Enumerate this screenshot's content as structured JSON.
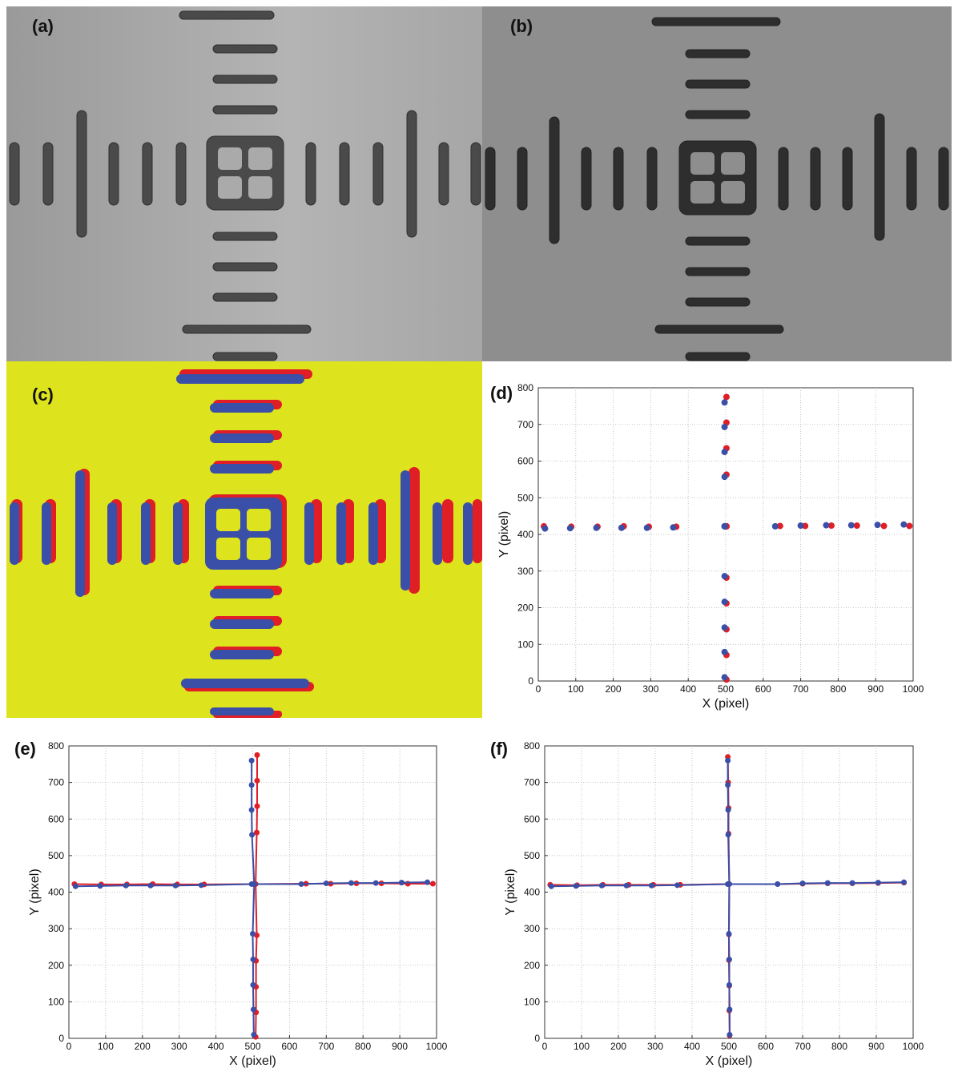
{
  "panels": {
    "a": {
      "label": "(a)"
    },
    "b": {
      "label": "(b)"
    },
    "c": {
      "label": "(c)"
    },
    "d": {
      "label": "(d)"
    },
    "e": {
      "label": "(e)"
    },
    "f": {
      "label": "(f)"
    }
  },
  "colors": {
    "red": "#e01e26",
    "blue": "#3a4fa8",
    "yellow": "#dde31c",
    "grid": "#b5b5b5"
  },
  "chart_data": [
    {
      "panel": "d",
      "type": "scatter",
      "title": "",
      "xlabel": "X (pixel)",
      "ylabel": "Y (pixel)",
      "xlim": [
        0,
        1000
      ],
      "ylim": [
        0,
        800
      ],
      "xticks": [
        "0",
        "100",
        "200",
        "300",
        "400",
        "500",
        "600",
        "700",
        "800",
        "900",
        "1000"
      ],
      "yticks": [
        "0",
        "100",
        "200",
        "300",
        "400",
        "500",
        "600",
        "700",
        "800"
      ],
      "grid": true,
      "lines": false,
      "series": [
        {
          "color": "red",
          "x": [
            15,
            88,
            158,
            228,
            295,
            368,
            502,
            645,
            712,
            782,
            850,
            922,
            990,
            502,
            502,
            502,
            502,
            502,
            502,
            502,
            502,
            502,
            502,
            502
          ],
          "y": [
            422,
            421,
            421,
            422,
            421,
            421,
            422,
            423,
            423,
            424,
            424,
            423,
            423,
            775,
            705,
            635,
            563,
            282,
            212,
            141,
            71,
            4,
            422,
            422
          ]
        },
        {
          "color": "blue",
          "x": [
            18,
            85,
            155,
            222,
            290,
            360,
            497,
            632,
            700,
            768,
            835,
            905,
            975,
            497,
            497,
            497,
            497,
            497,
            497,
            497,
            497,
            497,
            497,
            497
          ],
          "y": [
            416,
            417,
            418,
            418,
            418,
            419,
            422,
            422,
            424,
            425,
            425,
            426,
            427,
            760,
            693,
            625,
            557,
            286,
            216,
            146,
            79,
            10,
            422,
            422
          ]
        }
      ]
    },
    {
      "panel": "e",
      "type": "line",
      "title": "",
      "xlabel": "X (pixel)",
      "ylabel": "Y (pixel)",
      "xlim": [
        0,
        1000
      ],
      "ylim": [
        0,
        800
      ],
      "xticks": [
        "0",
        "100",
        "200",
        "300",
        "400",
        "500",
        "600",
        "700",
        "800",
        "900",
        "1000"
      ],
      "yticks": [
        "0",
        "100",
        "200",
        "300",
        "400",
        "500",
        "600",
        "700",
        "800"
      ],
      "grid": true,
      "lines": true,
      "series": [
        {
          "color": "red",
          "hx": [
            15,
            88,
            158,
            228,
            295,
            368,
            502,
            645,
            712,
            782,
            850,
            922,
            990
          ],
          "hy": [
            422,
            421,
            421,
            422,
            421,
            421,
            422,
            423,
            423,
            424,
            424,
            423,
            423
          ],
          "vx": [
            512,
            512,
            512,
            511,
            511,
            509,
            509,
            509,
            508,
            508
          ],
          "vy": [
            775,
            705,
            635,
            563,
            282,
            212,
            141,
            71,
            4,
            422
          ]
        },
        {
          "color": "blue",
          "hx": [
            18,
            85,
            155,
            222,
            290,
            360,
            497,
            632,
            700,
            768,
            835,
            905,
            975
          ],
          "hy": [
            416,
            417,
            418,
            418,
            418,
            419,
            422,
            422,
            424,
            425,
            425,
            426,
            427
          ],
          "vx": [
            497,
            497,
            497,
            498,
            500,
            501,
            501,
            502,
            503,
            504
          ],
          "vy": [
            760,
            693,
            625,
            557,
            286,
            216,
            146,
            79,
            10,
            422
          ]
        }
      ]
    },
    {
      "panel": "f",
      "type": "line",
      "title": "",
      "xlabel": "X (pixel)",
      "ylabel": "Y (pixel)",
      "xlim": [
        0,
        1000
      ],
      "ylim": [
        0,
        800
      ],
      "xticks": [
        "0",
        "100",
        "200",
        "300",
        "400",
        "500",
        "600",
        "700",
        "800",
        "900",
        "1000"
      ],
      "yticks": [
        "0",
        "100",
        "200",
        "300",
        "400",
        "500",
        "600",
        "700",
        "800"
      ],
      "grid": true,
      "lines": true,
      "series": [
        {
          "color": "red",
          "hx": [
            15,
            88,
            158,
            228,
            295,
            368,
            497,
            632,
            700,
            768,
            835,
            905,
            975
          ],
          "hy": [
            420,
            419,
            420,
            420,
            420,
            420,
            422,
            422,
            423,
            424,
            424,
            425,
            426
          ],
          "vx": [
            497,
            498,
            499,
            499,
            500,
            500,
            501,
            501,
            502,
            501
          ],
          "vy": [
            770,
            700,
            630,
            560,
            284,
            214,
            144,
            76,
            8,
            422
          ]
        },
        {
          "color": "blue",
          "hx": [
            18,
            85,
            155,
            222,
            290,
            360,
            497,
            632,
            700,
            768,
            835,
            905,
            975
          ],
          "hy": [
            416,
            417,
            418,
            418,
            418,
            419,
            422,
            422,
            424,
            425,
            425,
            426,
            427
          ],
          "vx": [
            497,
            497,
            498,
            498,
            500,
            501,
            501,
            502,
            502,
            501
          ],
          "vy": [
            760,
            693,
            625,
            557,
            286,
            216,
            146,
            79,
            10,
            422
          ]
        }
      ]
    }
  ]
}
